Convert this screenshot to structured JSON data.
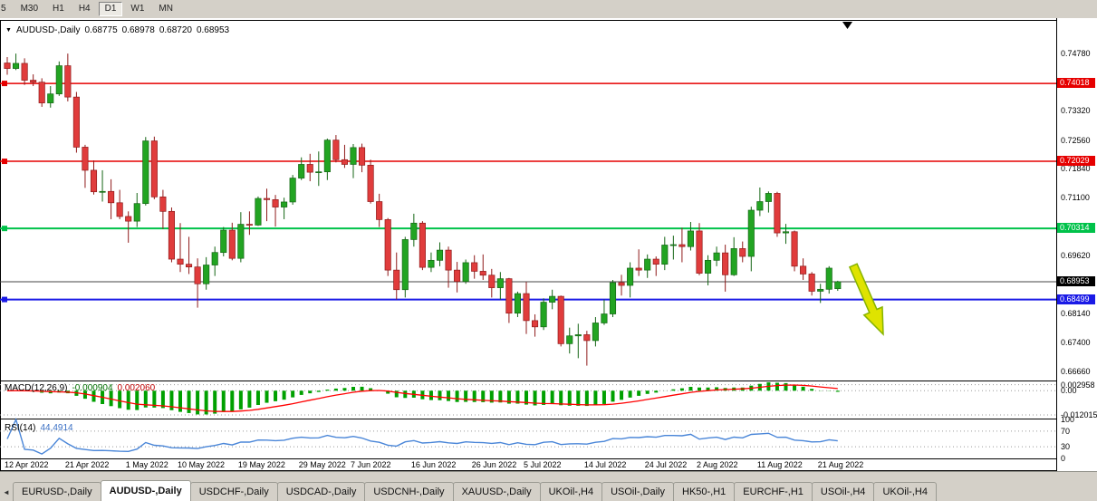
{
  "toolbar": {
    "timeframes": [
      {
        "label": "5",
        "active": false
      },
      {
        "label": "M30",
        "active": false
      },
      {
        "label": "H1",
        "active": false
      },
      {
        "label": "H4",
        "active": false
      },
      {
        "label": "D1",
        "active": true
      },
      {
        "label": "W1",
        "active": false
      },
      {
        "label": "MN",
        "active": false
      }
    ]
  },
  "chart_header": {
    "dropdown_icon": "▼",
    "symbol": "AUDUSD-,Daily",
    "open": "0.68775",
    "high": "0.68978",
    "low": "0.68720",
    "close": "0.68953"
  },
  "indicators": {
    "macd": {
      "name": "MACD(12,26,9)",
      "value_main": "-0.000904",
      "value_signal": "0.002060",
      "axis_ticks": [
        {
          "label": "0.002958",
          "value": 0.002958
        },
        {
          "label": "0.00",
          "value": 0
        },
        {
          "label": "-0.012015",
          "value": -0.012015
        }
      ]
    },
    "rsi": {
      "name": "RSI(14)",
      "value": "44,4914",
      "axis_ticks": [
        {
          "label": "100",
          "value": 100
        },
        {
          "label": "70",
          "value": 70
        },
        {
          "label": "30",
          "value": 30
        },
        {
          "label": "0",
          "value": 0
        }
      ],
      "levels": [
        70,
        30
      ]
    }
  },
  "price_axis_ticks": [
    "0.74780",
    "0.73320",
    "0.72560",
    "0.71840",
    "0.71100",
    "0.69620",
    "0.68140",
    "0.67400",
    "0.66660"
  ],
  "chart_data": {
    "type": "candlestick",
    "symbol": "AUDUSD",
    "timeframe": "Daily",
    "ohlc_format": [
      "open",
      "high",
      "low",
      "close"
    ],
    "y_axis_range": [
      0.6643,
      0.7564
    ],
    "candles": [
      [
        0.7454,
        0.7469,
        0.7424,
        0.744
      ],
      [
        0.744,
        0.7478,
        0.7436,
        0.7453
      ],
      [
        0.7453,
        0.7466,
        0.7398,
        0.741
      ],
      [
        0.741,
        0.7425,
        0.7395,
        0.7405
      ],
      [
        0.7405,
        0.7415,
        0.7342,
        0.7352
      ],
      [
        0.7352,
        0.7395,
        0.734,
        0.7375
      ],
      [
        0.7375,
        0.7458,
        0.737,
        0.7447
      ],
      [
        0.7447,
        0.7478,
        0.7356,
        0.7367
      ],
      [
        0.7367,
        0.738,
        0.7225,
        0.7239
      ],
      [
        0.7239,
        0.7245,
        0.7135,
        0.718
      ],
      [
        0.718,
        0.7205,
        0.7118,
        0.7125
      ],
      [
        0.7125,
        0.718,
        0.71,
        0.7126
      ],
      [
        0.7126,
        0.7157,
        0.7055,
        0.7097
      ],
      [
        0.7097,
        0.713,
        0.7055,
        0.7062
      ],
      [
        0.7062,
        0.7075,
        0.6995,
        0.705
      ],
      [
        0.705,
        0.7122,
        0.7035,
        0.7095
      ],
      [
        0.7095,
        0.7265,
        0.709,
        0.7255
      ],
      [
        0.7255,
        0.7266,
        0.7106,
        0.7112
      ],
      [
        0.7112,
        0.713,
        0.703,
        0.7075
      ],
      [
        0.7075,
        0.7085,
        0.6945,
        0.6953
      ],
      [
        0.6953,
        0.7045,
        0.692,
        0.694
      ],
      [
        0.694,
        0.701,
        0.6915,
        0.6933
      ],
      [
        0.6933,
        0.6955,
        0.6829,
        0.689
      ],
      [
        0.689,
        0.6958,
        0.6875,
        0.6938
      ],
      [
        0.6938,
        0.6985,
        0.691,
        0.697
      ],
      [
        0.697,
        0.7035,
        0.696,
        0.7027
      ],
      [
        0.7027,
        0.7046,
        0.695,
        0.6955
      ],
      [
        0.6955,
        0.7073,
        0.6945,
        0.7042
      ],
      [
        0.7042,
        0.7075,
        0.7015,
        0.704
      ],
      [
        0.704,
        0.7113,
        0.7038,
        0.7108
      ],
      [
        0.7108,
        0.7133,
        0.705,
        0.7105
      ],
      [
        0.7105,
        0.7117,
        0.7036,
        0.7086
      ],
      [
        0.7086,
        0.711,
        0.7055,
        0.7099
      ],
      [
        0.7099,
        0.7168,
        0.7092,
        0.716
      ],
      [
        0.716,
        0.7213,
        0.7155,
        0.7195
      ],
      [
        0.7195,
        0.7222,
        0.7152,
        0.7175
      ],
      [
        0.7175,
        0.7228,
        0.714,
        0.7176
      ],
      [
        0.7176,
        0.7261,
        0.7155,
        0.7257
      ],
      [
        0.7257,
        0.727,
        0.72,
        0.7207
      ],
      [
        0.7207,
        0.7245,
        0.7186,
        0.7195
      ],
      [
        0.7195,
        0.7247,
        0.716,
        0.7238
      ],
      [
        0.7238,
        0.7248,
        0.7175,
        0.7193
      ],
      [
        0.7193,
        0.7207,
        0.7095,
        0.71
      ],
      [
        0.71,
        0.712,
        0.7035,
        0.7054
      ],
      [
        0.7054,
        0.7058,
        0.691,
        0.6925
      ],
      [
        0.6925,
        0.697,
        0.685,
        0.6875
      ],
      [
        0.6875,
        0.701,
        0.6855,
        0.7003
      ],
      [
        0.7003,
        0.7069,
        0.6985,
        0.7045
      ],
      [
        0.7045,
        0.705,
        0.6925,
        0.6932
      ],
      [
        0.6932,
        0.697,
        0.692,
        0.695
      ],
      [
        0.695,
        0.6996,
        0.6935,
        0.6976
      ],
      [
        0.6976,
        0.6985,
        0.688,
        0.6925
      ],
      [
        0.6925,
        0.6946,
        0.6868,
        0.6896
      ],
      [
        0.6896,
        0.6952,
        0.689,
        0.6944
      ],
      [
        0.6944,
        0.6963,
        0.6903,
        0.6922
      ],
      [
        0.6922,
        0.6965,
        0.69,
        0.6912
      ],
      [
        0.6912,
        0.6928,
        0.6855,
        0.688
      ],
      [
        0.688,
        0.692,
        0.685,
        0.6903
      ],
      [
        0.6903,
        0.6905,
        0.679,
        0.6815
      ],
      [
        0.6815,
        0.687,
        0.6805,
        0.6865
      ],
      [
        0.6865,
        0.6895,
        0.6762,
        0.6796
      ],
      [
        0.6796,
        0.6812,
        0.6755,
        0.678
      ],
      [
        0.678,
        0.6853,
        0.6772,
        0.6843
      ],
      [
        0.6843,
        0.6875,
        0.6825,
        0.6858
      ],
      [
        0.6858,
        0.686,
        0.673,
        0.6737
      ],
      [
        0.6737,
        0.6778,
        0.6712,
        0.6757
      ],
      [
        0.6757,
        0.6788,
        0.67,
        0.676
      ],
      [
        0.676,
        0.677,
        0.6681,
        0.6745
      ],
      [
        0.6745,
        0.6805,
        0.673,
        0.679
      ],
      [
        0.679,
        0.685,
        0.6785,
        0.6813
      ],
      [
        0.6813,
        0.69,
        0.6805,
        0.6893
      ],
      [
        0.6893,
        0.6913,
        0.686,
        0.6886
      ],
      [
        0.6886,
        0.6945,
        0.6855,
        0.693
      ],
      [
        0.693,
        0.6978,
        0.691,
        0.6925
      ],
      [
        0.6925,
        0.6965,
        0.6905,
        0.6953
      ],
      [
        0.6953,
        0.696,
        0.691,
        0.694
      ],
      [
        0.694,
        0.701,
        0.6925,
        0.6989
      ],
      [
        0.6989,
        0.7013,
        0.6952,
        0.699
      ],
      [
        0.699,
        0.7033,
        0.6945,
        0.6985
      ],
      [
        0.6985,
        0.7048,
        0.6975,
        0.7025
      ],
      [
        0.7025,
        0.7045,
        0.6912,
        0.6917
      ],
      [
        0.6917,
        0.6963,
        0.6886,
        0.695
      ],
      [
        0.695,
        0.6985,
        0.6935,
        0.6969
      ],
      [
        0.6969,
        0.699,
        0.687,
        0.6913
      ],
      [
        0.6913,
        0.7009,
        0.691,
        0.698
      ],
      [
        0.698,
        0.6998,
        0.6945,
        0.696
      ],
      [
        0.696,
        0.7087,
        0.6922,
        0.7078
      ],
      [
        0.7078,
        0.7136,
        0.7063,
        0.71
      ],
      [
        0.71,
        0.7126,
        0.7072,
        0.7121
      ],
      [
        0.7121,
        0.7125,
        0.701,
        0.702
      ],
      [
        0.702,
        0.7043,
        0.6992,
        0.7023
      ],
      [
        0.7023,
        0.7026,
        0.6922,
        0.6935
      ],
      [
        0.6935,
        0.6955,
        0.69,
        0.6915
      ],
      [
        0.6915,
        0.692,
        0.686,
        0.6871
      ],
      [
        0.6871,
        0.689,
        0.6841,
        0.6876
      ],
      [
        0.6876,
        0.6935,
        0.6865,
        0.693
      ],
      [
        0.68775,
        0.68978,
        0.6872,
        0.68953
      ]
    ],
    "date_labels": [
      {
        "label": "12 Apr 2022",
        "index": 0
      },
      {
        "label": "21 Apr 2022",
        "index": 7
      },
      {
        "label": "1 May 2022",
        "index": 14
      },
      {
        "label": "10 May 2022",
        "index": 20
      },
      {
        "label": "19 May 2022",
        "index": 27
      },
      {
        "label": "29 May 2022",
        "index": 34
      },
      {
        "label": "7 Jun 2022",
        "index": 40
      },
      {
        "label": "16 Jun 2022",
        "index": 47
      },
      {
        "label": "26 Jun 2022",
        "index": 54
      },
      {
        "label": "5 Jul 2022",
        "index": 60
      },
      {
        "label": "14 Jul 2022",
        "index": 67
      },
      {
        "label": "24 Jul 2022",
        "index": 74
      },
      {
        "label": "2 Aug 2022",
        "index": 80
      },
      {
        "label": "11 Aug 2022",
        "index": 87
      },
      {
        "label": "21 Aug 2022",
        "index": 94
      }
    ],
    "levels": [
      {
        "price": 0.74018,
        "label": "0.74018",
        "color": "#e60000",
        "type": "resistance",
        "thickness": 1.5
      },
      {
        "price": 0.72029,
        "label": "0.72029",
        "color": "#e60000",
        "type": "resistance",
        "thickness": 1.5
      },
      {
        "price": 0.70314,
        "label": "0.70314",
        "color": "#00c24a",
        "type": "resistance",
        "thickness": 2
      },
      {
        "price": 0.68499,
        "label": "0.68499",
        "color": "#1a1ae6",
        "type": "support",
        "thickness": 2
      }
    ],
    "current_price": {
      "price": 0.68953,
      "label": "0.68953"
    },
    "annotations": [
      {
        "type": "arrow",
        "direction": "down-right",
        "meaning": "bearish-projection"
      },
      {
        "type": "marker",
        "shape": "triangle-down",
        "color": "#000000"
      }
    ]
  },
  "colors": {
    "bull": "#22a422",
    "bull_dark": "#156615",
    "bear": "#e03c3c",
    "bear_dark": "#8f1a1a",
    "macd_hist": "#00a000",
    "macd_signal": "#ff0000",
    "rsi_line": "#4a86d8",
    "current_price_line": "#444444",
    "arrow_fill": "#dfe300",
    "arrow_stroke": "#86b300"
  },
  "tabs": {
    "scroll_left_icon": "◄",
    "items": [
      {
        "label": "EURUSD-,Daily",
        "active": false
      },
      {
        "label": "AUDUSD-,Daily",
        "active": true
      },
      {
        "label": "USDCHF-,Daily",
        "active": false
      },
      {
        "label": "USDCAD-,Daily",
        "active": false
      },
      {
        "label": "USDCNH-,Daily",
        "active": false
      },
      {
        "label": "XAUUSD-,Daily",
        "active": false
      },
      {
        "label": "UKOil-,H4",
        "active": false
      },
      {
        "label": "USOil-,Daily",
        "active": false
      },
      {
        "label": "HK50-,H1",
        "active": false
      },
      {
        "label": "EURCHF-,H1",
        "active": false
      },
      {
        "label": "USOil-,H4",
        "active": false
      },
      {
        "label": "UKOil-,H4",
        "active": false
      }
    ]
  }
}
